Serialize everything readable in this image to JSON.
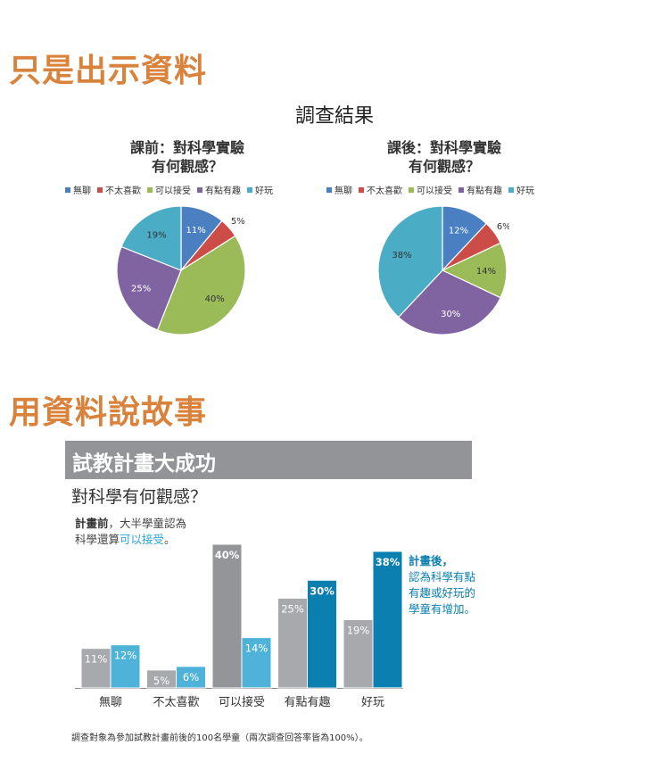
{
  "headings": {
    "section1": "只是出示資料",
    "section2": "用資料說故事"
  },
  "survey_title": "調查結果",
  "pies": [
    {
      "title_line1": "課前：對科學實驗",
      "title_line2": "有何觀感？",
      "values": [
        11,
        5,
        40,
        25,
        19
      ],
      "labels": [
        "11%",
        "5%",
        "40%",
        "25%",
        "19%"
      ]
    },
    {
      "title_line1": "課後：對科學實驗",
      "title_line2": "有何觀感？",
      "values": [
        12,
        6,
        14,
        30,
        38
      ],
      "labels": [
        "12%",
        "6%",
        "14%",
        "30%",
        "38%"
      ]
    }
  ],
  "legend": [
    "無聊",
    "不太喜歡",
    "可以接受",
    "有點有趣",
    "好玩"
  ],
  "colors": {
    "pie": [
      "#4a7fc1",
      "#cc4d48",
      "#9bbb59",
      "#8064a2",
      "#4bacc6"
    ],
    "pre_bar": "#a7a9ac",
    "pre_bar_peak": "#939598",
    "post_bar": "#4fb3d9",
    "post_bar_peak": "#0a7fb0",
    "heading": "#d9823b"
  },
  "story": {
    "banner": "試教計畫大成功",
    "question": "對科學有何觀感？",
    "note_pre_bold": "計畫前",
    "note_pre_rest": "，大半學童認為",
    "note_pre_line2": "科學還算",
    "note_pre_highlight": "可以接受",
    "note_pre_end": "。",
    "note_post_bold": "計畫後，",
    "note_post_line2": "認為科學有點",
    "note_post_line3": "有趣或好玩的",
    "note_post_line4": "學童有增加。",
    "footnote": "調查對象為參加試教計畫前後的100名學童（兩次調查回答率皆為100%）。"
  },
  "chart_data": [
    {
      "type": "pie",
      "title": "課前：對科學實驗有何觀感？",
      "categories": [
        "無聊",
        "不太喜歡",
        "可以接受",
        "有點有趣",
        "好玩"
      ],
      "values": [
        11,
        5,
        40,
        25,
        19
      ]
    },
    {
      "type": "pie",
      "title": "課後：對科學實驗有何觀感？",
      "categories": [
        "無聊",
        "不太喜歡",
        "可以接受",
        "有點有趣",
        "好玩"
      ],
      "values": [
        12,
        6,
        14,
        30,
        38
      ]
    },
    {
      "type": "bar",
      "title": "對科學有何觀感？",
      "categories": [
        "無聊",
        "不太喜歡",
        "可以接受",
        "有點有趣",
        "好玩"
      ],
      "series": [
        {
          "values": [
            11,
            5,
            40,
            25,
            19
          ],
          "labels": [
            "11%",
            "5%",
            "40%",
            "25%",
            "19%"
          ]
        },
        {
          "values": [
            12,
            6,
            14,
            30,
            38
          ],
          "labels": [
            "12%",
            "6%",
            "14%",
            "30%",
            "38%"
          ]
        }
      ],
      "ylim": [
        0,
        40
      ],
      "grid": false
    }
  ]
}
